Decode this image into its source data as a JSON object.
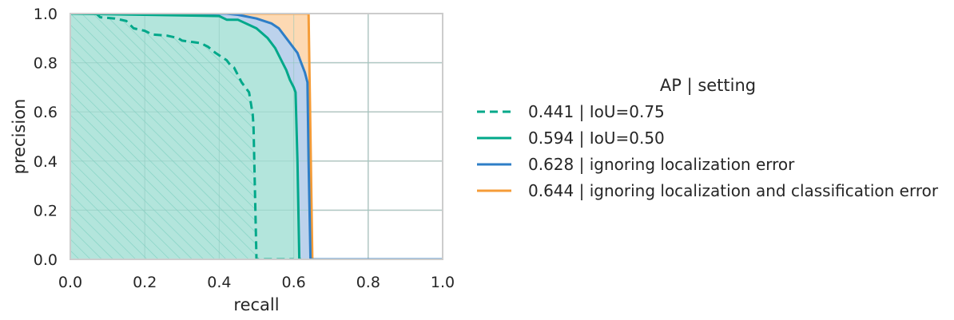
{
  "chart_data": {
    "type": "line",
    "xlabel": "recall",
    "ylabel": "precision",
    "xlim": [
      0.0,
      1.0
    ],
    "ylim": [
      0.0,
      1.0
    ],
    "x_ticks": [
      "0.0",
      "0.2",
      "0.4",
      "0.6",
      "0.8",
      "1.0"
    ],
    "y_ticks": [
      "0.0",
      "0.2",
      "0.4",
      "0.6",
      "0.8",
      "1.0"
    ],
    "grid": true,
    "legend_title": "AP | setting",
    "legend_position": "right",
    "series": [
      {
        "name": "0.441 | IoU=0.75",
        "color": "#00a88a",
        "fill": "#b3e5dc",
        "hatch": true,
        "dashed": true,
        "points": [
          [
            0.0,
            1.0
          ],
          [
            0.07,
            1.0
          ],
          [
            0.08,
            0.985
          ],
          [
            0.12,
            0.98
          ],
          [
            0.15,
            0.97
          ],
          [
            0.17,
            0.94
          ],
          [
            0.2,
            0.93
          ],
          [
            0.22,
            0.915
          ],
          [
            0.26,
            0.91
          ],
          [
            0.29,
            0.9
          ],
          [
            0.3,
            0.89
          ],
          [
            0.35,
            0.88
          ],
          [
            0.37,
            0.865
          ],
          [
            0.39,
            0.84
          ],
          [
            0.4,
            0.83
          ],
          [
            0.42,
            0.81
          ],
          [
            0.43,
            0.79
          ],
          [
            0.44,
            0.78
          ],
          [
            0.46,
            0.72
          ],
          [
            0.47,
            0.7
          ],
          [
            0.48,
            0.68
          ],
          [
            0.49,
            0.59
          ],
          [
            0.492,
            0.54
          ],
          [
            0.5,
            0.0
          ],
          [
            0.6,
            0.0
          ]
        ]
      },
      {
        "name": "0.594 | IoU=0.50",
        "color": "#00a88a",
        "fill": "#b3e5dc",
        "hatch": false,
        "dashed": false,
        "points": [
          [
            0.0,
            1.0
          ],
          [
            0.4,
            0.99
          ],
          [
            0.42,
            0.975
          ],
          [
            0.45,
            0.975
          ],
          [
            0.5,
            0.94
          ],
          [
            0.53,
            0.9
          ],
          [
            0.55,
            0.86
          ],
          [
            0.57,
            0.8
          ],
          [
            0.58,
            0.77
          ],
          [
            0.59,
            0.73
          ],
          [
            0.6,
            0.7
          ],
          [
            0.605,
            0.68
          ],
          [
            0.61,
            0.4
          ],
          [
            0.615,
            0.0
          ],
          [
            0.62,
            0.0
          ]
        ]
      },
      {
        "name": "0.628 | ignoring localization error",
        "color": "#2e7ec7",
        "fill": "#bcd2ec",
        "hatch": false,
        "dashed": false,
        "points": [
          [
            0.0,
            1.0
          ],
          [
            0.42,
            1.0
          ],
          [
            0.45,
            0.995
          ],
          [
            0.5,
            0.98
          ],
          [
            0.54,
            0.96
          ],
          [
            0.56,
            0.94
          ],
          [
            0.58,
            0.9
          ],
          [
            0.6,
            0.86
          ],
          [
            0.61,
            0.84
          ],
          [
            0.62,
            0.8
          ],
          [
            0.63,
            0.76
          ],
          [
            0.637,
            0.72
          ],
          [
            0.64,
            0.4
          ],
          [
            0.645,
            0.0
          ],
          [
            1.0,
            0.0
          ]
        ]
      },
      {
        "name": "0.644 | ignoring localization and classification error",
        "color": "#f59c38",
        "fill": "#fdd9b3",
        "hatch": false,
        "dashed": false,
        "points": [
          [
            0.0,
            1.0
          ],
          [
            0.64,
            1.0
          ],
          [
            0.645,
            0.5
          ],
          [
            0.65,
            0.0
          ],
          [
            1.0,
            0.0
          ]
        ]
      }
    ]
  }
}
